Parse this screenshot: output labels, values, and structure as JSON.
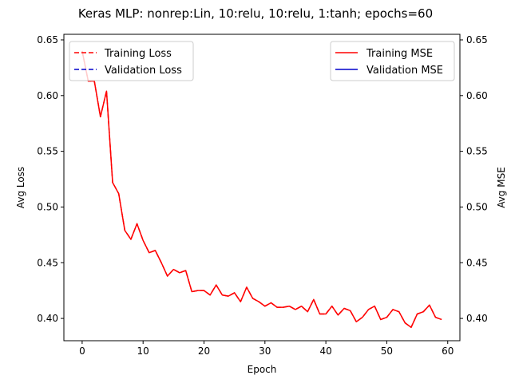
{
  "chart_data": {
    "type": "line",
    "title": "Keras MLP: nonrep:Lin, 10:relu, 10:relu, 1:tanh; epochs=60",
    "xlabel": "Epoch",
    "ylabel_left": "Avg Loss",
    "ylabel_right": "Avg MSE",
    "xlim": [
      -3,
      62
    ],
    "ylim": [
      0.38,
      0.655
    ],
    "x_ticks": [
      0,
      10,
      20,
      30,
      40,
      50,
      60
    ],
    "y_ticks": [
      0.4,
      0.45,
      0.5,
      0.55,
      0.6,
      0.65
    ],
    "y_tick_labels": [
      "0.40",
      "0.45",
      "0.50",
      "0.55",
      "0.60",
      "0.65"
    ],
    "grid": false,
    "legend_left": {
      "position": "upper-left",
      "entries": [
        {
          "label": "Training Loss",
          "color": "#ff0000",
          "style": "dashed"
        },
        {
          "label": "Validation Loss",
          "color": "#0000cc",
          "style": "dashed"
        }
      ]
    },
    "legend_right": {
      "position": "upper-right",
      "entries": [
        {
          "label": "Training MSE",
          "color": "#ff0000",
          "style": "solid"
        },
        {
          "label": "Validation MSE",
          "color": "#0000cc",
          "style": "solid"
        }
      ]
    },
    "x": [
      0,
      1,
      2,
      3,
      4,
      5,
      6,
      7,
      8,
      9,
      10,
      11,
      12,
      13,
      14,
      15,
      16,
      17,
      18,
      19,
      20,
      21,
      22,
      23,
      24,
      25,
      26,
      27,
      28,
      29,
      30,
      31,
      32,
      33,
      34,
      35,
      36,
      37,
      38,
      39,
      40,
      41,
      42,
      43,
      44,
      45,
      46,
      47,
      48,
      49,
      50,
      51,
      52,
      53,
      54,
      55,
      56,
      57,
      58,
      59
    ],
    "series": [
      {
        "name": "Training Loss",
        "color": "#ff0000",
        "style": "dashed",
        "values": [
          0.64,
          0.613,
          0.613,
          0.581,
          0.604,
          0.522,
          0.512,
          0.479,
          0.471,
          0.485,
          0.47,
          0.459,
          0.461,
          0.45,
          0.438,
          0.444,
          0.441,
          0.443,
          0.424,
          0.425,
          0.425,
          0.421,
          0.43,
          0.421,
          0.42,
          0.423,
          0.415,
          0.428,
          0.418,
          0.415,
          0.411,
          0.414,
          0.41,
          0.41,
          0.411,
          0.408,
          0.411,
          0.406,
          0.417,
          0.404,
          0.404,
          0.411,
          0.403,
          0.409,
          0.407,
          0.397,
          0.401,
          0.408,
          0.411,
          0.399,
          0.401,
          0.408,
          0.406,
          0.396,
          0.392,
          0.404,
          0.406,
          0.412,
          0.401,
          0.399
        ]
      },
      {
        "name": "Training MSE",
        "color": "#ff0000",
        "style": "solid",
        "values": [
          0.64,
          0.613,
          0.613,
          0.581,
          0.604,
          0.522,
          0.512,
          0.479,
          0.471,
          0.485,
          0.47,
          0.459,
          0.461,
          0.45,
          0.438,
          0.444,
          0.441,
          0.443,
          0.424,
          0.425,
          0.425,
          0.421,
          0.43,
          0.421,
          0.42,
          0.423,
          0.415,
          0.428,
          0.418,
          0.415,
          0.411,
          0.414,
          0.41,
          0.41,
          0.411,
          0.408,
          0.411,
          0.406,
          0.417,
          0.404,
          0.404,
          0.411,
          0.403,
          0.409,
          0.407,
          0.397,
          0.401,
          0.408,
          0.411,
          0.399,
          0.401,
          0.408,
          0.406,
          0.396,
          0.392,
          0.404,
          0.406,
          0.412,
          0.401,
          0.399
        ]
      }
    ]
  }
}
